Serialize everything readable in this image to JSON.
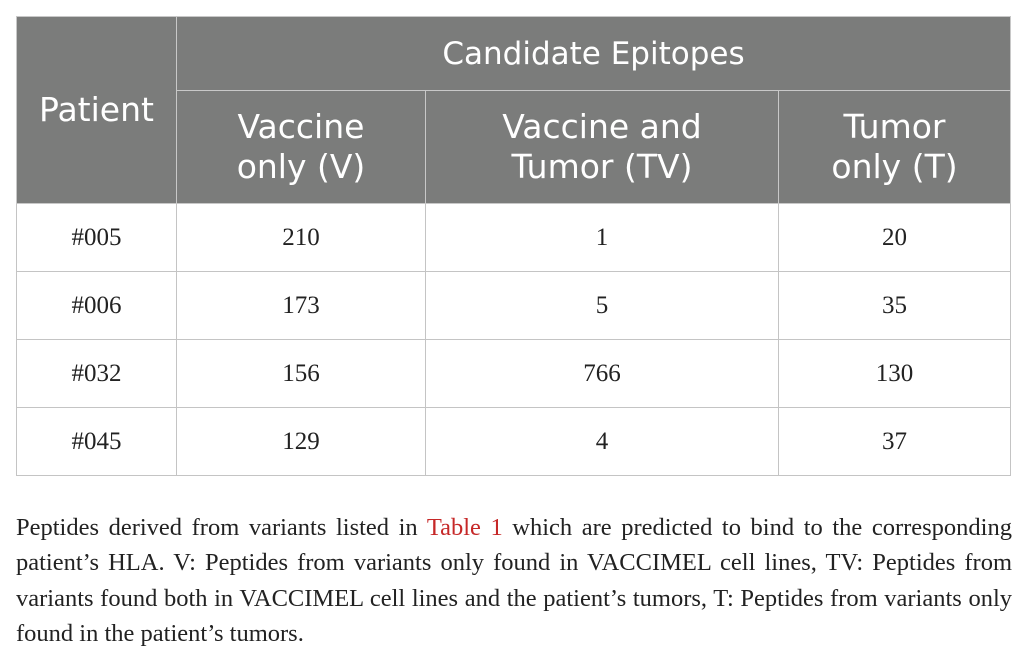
{
  "table": {
    "group_header": "Candidate Epitopes",
    "headers": {
      "patient": "Patient",
      "v_line1": "Vaccine",
      "v_line2": "only (V)",
      "tv_line1": "Vaccine and",
      "tv_line2": "Tumor (TV)",
      "t_line1": "Tumor",
      "t_line2": "only (T)"
    },
    "rows": [
      {
        "patient": "#005",
        "v": "210",
        "tv": "1",
        "t": "20"
      },
      {
        "patient": "#006",
        "v": "173",
        "tv": "5",
        "t": "35"
      },
      {
        "patient": "#032",
        "v": "156",
        "tv": "766",
        "t": "130"
      },
      {
        "patient": "#045",
        "v": "129",
        "tv": "4",
        "t": "37"
      }
    ]
  },
  "caption": {
    "before_ref": "Peptides derived from variants listed in ",
    "ref": "Table 1",
    "after_ref": " which are predicted to bind to the corresponding patient’s HLA. V: Peptides from variants only found in VACCIMEL cell lines, TV: Peptides from variants found both in VACCIMEL cell lines and the patient’s tumors, T: Peptides from variants only found in the patient’s tumors."
  },
  "colors": {
    "header_bg": "#7b7c7b",
    "link": "#c62828"
  }
}
